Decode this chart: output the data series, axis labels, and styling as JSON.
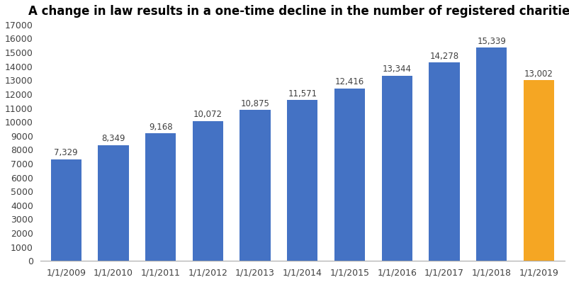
{
  "title": "A change in law results in a one-time decline in the number of registered charities",
  "categories": [
    "1/1/2009",
    "1/1/2010",
    "1/1/2011",
    "1/1/2012",
    "1/1/2013",
    "1/1/2014",
    "1/1/2015",
    "1/1/2016",
    "1/1/2017",
    "1/1/2018",
    "1/1/2019"
  ],
  "values": [
    7329,
    8349,
    9168,
    10072,
    10875,
    11571,
    12416,
    13344,
    14278,
    15339,
    13002
  ],
  "bar_colors": [
    "#4472c4",
    "#4472c4",
    "#4472c4",
    "#4472c4",
    "#4472c4",
    "#4472c4",
    "#4472c4",
    "#4472c4",
    "#4472c4",
    "#4472c4",
    "#f5a623"
  ],
  "ylim": [
    0,
    17000
  ],
  "yticks": [
    0,
    1000,
    2000,
    3000,
    4000,
    5000,
    6000,
    7000,
    8000,
    9000,
    10000,
    11000,
    12000,
    13000,
    14000,
    15000,
    16000,
    17000
  ],
  "title_fontsize": 12,
  "label_fontsize": 8.5,
  "tick_fontsize": 9,
  "background_color": "#ffffff"
}
